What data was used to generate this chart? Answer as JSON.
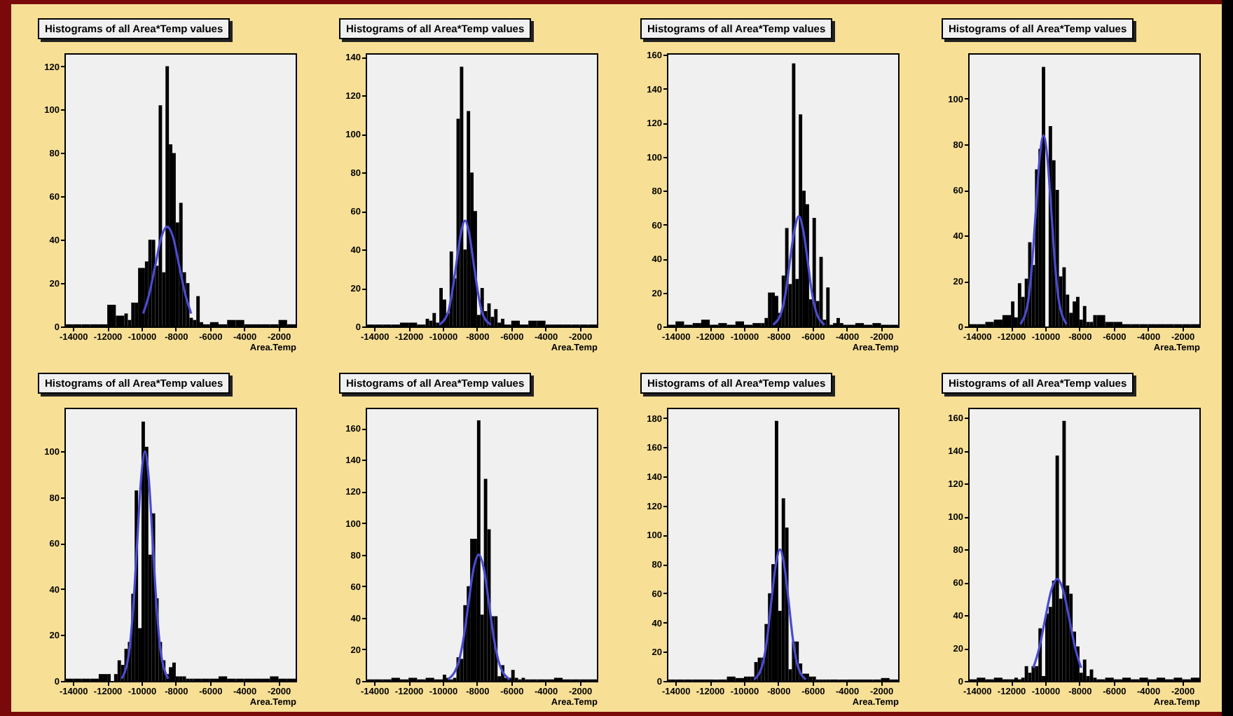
{
  "chart_data": [
    {
      "type": "histogram",
      "title": "Histograms of all Area*Temp values",
      "xlabel": "Area.Temp",
      "xlim": [
        -14500,
        -1000
      ],
      "xticks": [
        -14000,
        -12000,
        -10000,
        -8000,
        -6000,
        -4000,
        -2000
      ],
      "ylim": [
        0,
        126
      ],
      "yticks": [
        0,
        20,
        40,
        60,
        80,
        100,
        120
      ],
      "series": [
        {
          "type": "histogram",
          "color": "#000000",
          "bins": [
            -14500,
            -14000,
            -13500,
            -13000,
            -12500,
            -12000,
            -11500,
            -11000,
            -10800,
            -10600,
            -10400,
            -10200,
            -10000,
            -9800,
            -9600,
            -9400,
            -9200,
            -9000,
            -8800,
            -8600,
            -8400,
            -8200,
            -8000,
            -7800,
            -7600,
            -7400,
            -7200,
            -7000,
            -6800,
            -6600,
            -6400,
            -6200,
            -6000,
            -5500,
            -5000,
            -4500,
            -4000,
            -3500,
            -3000,
            -2500,
            -2000,
            -1500,
            -1000
          ],
          "values": [
            1,
            1,
            1,
            1,
            1,
            10,
            5,
            6,
            3,
            11,
            11,
            27,
            27,
            30,
            40,
            40,
            28,
            102,
            25,
            120,
            84,
            80,
            48,
            57,
            25,
            20,
            4,
            3,
            14,
            2,
            1,
            1,
            2,
            1,
            3,
            3,
            1,
            1,
            1,
            1,
            3,
            1
          ]
        },
        {
          "type": "line",
          "color": "#4b4bd2",
          "x": [
            -9900,
            -9550,
            -9200,
            -8850,
            -8500,
            -8150,
            -7800,
            -7450,
            -7100
          ],
          "values": [
            6,
            15,
            28,
            41,
            46,
            41,
            28,
            15,
            6
          ]
        }
      ]
    },
    {
      "type": "histogram",
      "title": "Histograms of all Area*Temp values",
      "xlabel": "Area.Temp",
      "xlim": [
        -14500,
        -1000
      ],
      "xticks": [
        -14000,
        -12000,
        -10000,
        -8000,
        -6000,
        -4000,
        -2000
      ],
      "ylim": [
        0,
        142
      ],
      "yticks": [
        0,
        20,
        40,
        60,
        80,
        100,
        120,
        140
      ],
      "series": [
        {
          "type": "histogram",
          "color": "#000000",
          "bins": [
            -14500,
            -14000,
            -13500,
            -13000,
            -12500,
            -12000,
            -11500,
            -11000,
            -10800,
            -10600,
            -10400,
            -10200,
            -10000,
            -9800,
            -9600,
            -9400,
            -9200,
            -9000,
            -8800,
            -8600,
            -8400,
            -8200,
            -8000,
            -7800,
            -7600,
            -7400,
            -7200,
            -7000,
            -6800,
            -6600,
            -6400,
            -6200,
            -6000,
            -5500,
            -5000,
            -4500,
            -4000,
            -3500,
            -3000,
            -2500,
            -2000,
            -1500,
            -1000
          ],
          "values": [
            1,
            1,
            1,
            1,
            2,
            2,
            1,
            4,
            3,
            7,
            2,
            20,
            14,
            7,
            39,
            25,
            108,
            135,
            40,
            112,
            80,
            60,
            6,
            20,
            8,
            12,
            5,
            9,
            2,
            4,
            1,
            1,
            3,
            1,
            3,
            3,
            1,
            1,
            1,
            1,
            1,
            1
          ]
        },
        {
          "type": "line",
          "color": "#4b4bd2",
          "x": [
            -10200,
            -9700,
            -9450,
            -9200,
            -8950,
            -8700,
            -8450,
            -8200,
            -7950,
            -7700,
            -7200
          ],
          "values": [
            1,
            7,
            18,
            33,
            48,
            55,
            48,
            33,
            18,
            7,
            1
          ]
        }
      ]
    },
    {
      "type": "histogram",
      "title": "Histograms of all Area*Temp values",
      "xlabel": "Area.Temp",
      "xlim": [
        -14500,
        -1000
      ],
      "xticks": [
        -14000,
        -12000,
        -10000,
        -8000,
        -6000,
        -4000,
        -2000
      ],
      "ylim": [
        0,
        161
      ],
      "yticks": [
        0,
        20,
        40,
        60,
        80,
        100,
        120,
        140,
        160
      ],
      "series": [
        {
          "type": "histogram",
          "color": "#000000",
          "bins": [
            -14500,
            -14000,
            -13500,
            -13000,
            -12500,
            -12000,
            -11500,
            -11000,
            -10500,
            -10000,
            -9500,
            -9000,
            -8800,
            -8600,
            -8400,
            -8200,
            -8000,
            -7800,
            -7600,
            -7400,
            -7200,
            -7000,
            -6800,
            -6600,
            -6400,
            -6200,
            -6000,
            -5800,
            -5600,
            -5400,
            -5200,
            -5000,
            -4800,
            -4600,
            -4400,
            -4200,
            -4000,
            -3500,
            -3000,
            -2500,
            -2000,
            -1500,
            -1000
          ],
          "values": [
            1,
            3,
            1,
            2,
            4,
            1,
            2,
            1,
            3,
            1,
            2,
            2,
            5,
            20,
            20,
            18,
            8,
            30,
            58,
            25,
            155,
            28,
            125,
            80,
            72,
            16,
            64,
            15,
            41,
            4,
            23,
            1,
            2,
            5,
            2,
            1,
            1,
            2,
            1,
            2,
            1,
            1
          ]
        },
        {
          "type": "line",
          "color": "#4b4bd2",
          "x": [
            -8300,
            -7800,
            -7550,
            -7300,
            -7050,
            -6800,
            -6550,
            -6300,
            -6050,
            -5800,
            -5300
          ],
          "values": [
            1,
            9,
            21,
            40,
            57,
            65,
            57,
            40,
            21,
            9,
            1
          ]
        }
      ]
    },
    {
      "type": "histogram",
      "title": "Histograms of all Area*Temp values",
      "xlabel": "Area.Temp",
      "xlim": [
        -14500,
        -1000
      ],
      "xticks": [
        -14000,
        -12000,
        -10000,
        -8000,
        -6000,
        -4000,
        -2000
      ],
      "ylim": [
        0,
        120
      ],
      "yticks": [
        0,
        20,
        40,
        60,
        80,
        100
      ],
      "series": [
        {
          "type": "histogram",
          "color": "#000000",
          "bins": [
            -14500,
            -14000,
            -13500,
            -13000,
            -12500,
            -12000,
            -11800,
            -11600,
            -11400,
            -11200,
            -11000,
            -10800,
            -10600,
            -10400,
            -10200,
            -10000,
            -9800,
            -9600,
            -9400,
            -9200,
            -9000,
            -8800,
            -8600,
            -8400,
            -8200,
            -8000,
            -7800,
            -7600,
            -7400,
            -7200,
            -7000,
            -6500,
            -6000,
            -5500,
            -5000,
            -4500,
            -4000,
            -3500,
            -3000,
            -2500,
            -2000,
            -1500,
            -1000
          ],
          "values": [
            1,
            1,
            2,
            3,
            5,
            11,
            4,
            19,
            13,
            21,
            37,
            27,
            69,
            78,
            114,
            0,
            88,
            73,
            60,
            22,
            26,
            14,
            6,
            11,
            13,
            3,
            9,
            2,
            2,
            5,
            5,
            2,
            2,
            1,
            1,
            1,
            1,
            1,
            1,
            1,
            1,
            1
          ]
        },
        {
          "type": "line",
          "color": "#4b4bd2",
          "x": [
            -11450,
            -11000,
            -10775,
            -10550,
            -10325,
            -10100,
            -9875,
            -9650,
            -9425,
            -9200,
            -8750
          ],
          "values": [
            1,
            11,
            27,
            51,
            74,
            84,
            74,
            51,
            27,
            11,
            1
          ]
        }
      ]
    },
    {
      "type": "histogram",
      "title": "Histograms of all Area*Temp values",
      "xlabel": "Area.Temp",
      "xlim": [
        -14500,
        -1000
      ],
      "xticks": [
        -14000,
        -12000,
        -10000,
        -8000,
        -6000,
        -4000,
        -2000
      ],
      "ylim": [
        0,
        119
      ],
      "yticks": [
        0,
        20,
        40,
        60,
        80,
        100
      ],
      "series": [
        {
          "type": "histogram",
          "color": "#000000",
          "bins": [
            -14500,
            -14000,
            -13500,
            -13000,
            -12500,
            -12000,
            -11800,
            -11600,
            -11400,
            -11200,
            -11000,
            -10800,
            -10600,
            -10400,
            -10200,
            -10000,
            -9800,
            -9600,
            -9400,
            -9200,
            -9000,
            -8800,
            -8600,
            -8400,
            -8200,
            -8000,
            -7800,
            -7600,
            -7400,
            -7200,
            -7000,
            -6500,
            -6000,
            -5500,
            -5000,
            -4500,
            -4000,
            -3500,
            -3000,
            -2500,
            -2000,
            -1500,
            -1000
          ],
          "values": [
            1,
            1,
            1,
            1,
            3,
            3,
            0,
            3,
            9,
            7,
            14,
            17,
            38,
            83,
            23,
            113,
            102,
            55,
            73,
            36,
            17,
            9,
            3,
            6,
            8,
            2,
            2,
            2,
            1,
            1,
            1,
            1,
            1,
            2,
            1,
            1,
            1,
            1,
            1,
            2,
            1,
            1
          ]
        },
        {
          "type": "line",
          "color": "#4b4bd2",
          "x": [
            -11150,
            -10700,
            -10475,
            -10250,
            -10025,
            -9800,
            -9575,
            -9350,
            -9125,
            -8900,
            -8450
          ],
          "values": [
            1,
            14,
            33,
            61,
            88,
            100,
            88,
            61,
            33,
            14,
            1
          ]
        }
      ]
    },
    {
      "type": "histogram",
      "title": "Histograms of all Area*Temp values",
      "xlabel": "Area.Temp",
      "xlim": [
        -14500,
        -1000
      ],
      "xticks": [
        -14000,
        -12000,
        -10000,
        -8000,
        -6000,
        -4000,
        -2000
      ],
      "ylim": [
        0,
        173
      ],
      "yticks": [
        0,
        20,
        40,
        60,
        80,
        100,
        120,
        140,
        160
      ],
      "series": [
        {
          "type": "histogram",
          "color": "#000000",
          "bins": [
            -14500,
            -14000,
            -13500,
            -13000,
            -12500,
            -12000,
            -11500,
            -11000,
            -10500,
            -10000,
            -9800,
            -9600,
            -9400,
            -9200,
            -9000,
            -8800,
            -8600,
            -8400,
            -8200,
            -8000,
            -7800,
            -7600,
            -7400,
            -7200,
            -7000,
            -6800,
            -6600,
            -6400,
            -6200,
            -6000,
            -5800,
            -5600,
            -5400,
            -5200,
            -5000,
            -4500,
            -4000,
            -3500,
            -3000,
            -2500,
            -2000,
            -1500,
            -1000
          ],
          "values": [
            1,
            1,
            1,
            2,
            1,
            2,
            1,
            2,
            1,
            4,
            2,
            1,
            2,
            15,
            14,
            48,
            60,
            90,
            90,
            165,
            42,
            128,
            96,
            41,
            41,
            3,
            10,
            2,
            2,
            7,
            2,
            1,
            2,
            1,
            1,
            1,
            1,
            2,
            1,
            1,
            1,
            1
          ]
        },
        {
          "type": "line",
          "color": "#4b4bd2",
          "x": [
            -9700,
            -9100,
            -8800,
            -8500,
            -8200,
            -7900,
            -7600,
            -7300,
            -7000,
            -6700,
            -6100
          ],
          "values": [
            1,
            11,
            26,
            49,
            71,
            80,
            71,
            49,
            26,
            11,
            1
          ]
        }
      ]
    },
    {
      "type": "histogram",
      "title": "Histograms of all Area*Temp values",
      "xlabel": "Area.Temp",
      "xlim": [
        -14500,
        -1000
      ],
      "xticks": [
        -14000,
        -12000,
        -10000,
        -8000,
        -6000,
        -4000,
        -2000
      ],
      "ylim": [
        0,
        187
      ],
      "yticks": [
        0,
        20,
        40,
        60,
        80,
        100,
        120,
        140,
        160,
        180
      ],
      "series": [
        {
          "type": "histogram",
          "color": "#000000",
          "bins": [
            -14500,
            -14000,
            -13500,
            -13000,
            -12500,
            -12000,
            -11500,
            -11000,
            -10500,
            -10000,
            -9800,
            -9600,
            -9400,
            -9200,
            -9000,
            -8800,
            -8600,
            -8400,
            -8200,
            -8000,
            -7800,
            -7600,
            -7400,
            -7200,
            -7000,
            -6800,
            -6600,
            -6400,
            -6200,
            -6000,
            -5800,
            -5600,
            -5400,
            -5200,
            -5000,
            -4500,
            -4000,
            -3500,
            -3000,
            -2500,
            -2000,
            -1500,
            -1000
          ],
          "values": [
            1,
            1,
            1,
            1,
            1,
            1,
            1,
            3,
            2,
            3,
            3,
            3,
            13,
            16,
            16,
            39,
            60,
            80,
            178,
            48,
            125,
            105,
            8,
            27,
            27,
            12,
            5,
            5,
            3,
            3,
            1,
            1,
            1,
            1,
            1,
            1,
            1,
            1,
            1,
            1,
            2,
            1
          ]
        },
        {
          "type": "line",
          "color": "#4b4bd2",
          "x": [
            -9400,
            -8900,
            -8650,
            -8400,
            -8150,
            -7900,
            -7650,
            -7400,
            -7150,
            -6900,
            -6400
          ],
          "values": [
            1,
            12,
            29,
            55,
            79,
            90,
            79,
            55,
            29,
            12,
            1
          ]
        }
      ]
    },
    {
      "type": "histogram",
      "title": "Histograms of all Area*Temp values",
      "xlabel": "Area.Temp",
      "xlim": [
        -14500,
        -1000
      ],
      "xticks": [
        -14000,
        -12000,
        -10000,
        -8000,
        -6000,
        -4000,
        -2000
      ],
      "ylim": [
        0,
        166
      ],
      "yticks": [
        0,
        20,
        40,
        60,
        80,
        100,
        120,
        140,
        160
      ],
      "series": [
        {
          "type": "histogram",
          "color": "#000000",
          "bins": [
            -14500,
            -14000,
            -13500,
            -13000,
            -12500,
            -12000,
            -11800,
            -11600,
            -11400,
            -11200,
            -11000,
            -10800,
            -10600,
            -10400,
            -10200,
            -10000,
            -9800,
            -9600,
            -9400,
            -9200,
            -9000,
            -8800,
            -8600,
            -8400,
            -8200,
            -8000,
            -7800,
            -7600,
            -7400,
            -7200,
            -7000,
            -6500,
            -6000,
            -5500,
            -5000,
            -4500,
            -4000,
            -3500,
            -3000,
            -2500,
            -2000,
            -1500,
            -1000
          ],
          "values": [
            1,
            2,
            1,
            2,
            1,
            1,
            2,
            1,
            2,
            9,
            5,
            9,
            9,
            32,
            3,
            41,
            45,
            61,
            137,
            50,
            158,
            58,
            53,
            30,
            21,
            5,
            13,
            3,
            7,
            2,
            1,
            2,
            1,
            2,
            1,
            2,
            1,
            2,
            1,
            2,
            1,
            2
          ]
        },
        {
          "type": "line",
          "color": "#4b4bd2",
          "x": [
            -10700,
            -10350,
            -10000,
            -9650,
            -9300,
            -8950,
            -8600,
            -8250,
            -7900
          ],
          "values": [
            8,
            20,
            38,
            55,
            62,
            55,
            38,
            20,
            8
          ]
        }
      ]
    }
  ]
}
